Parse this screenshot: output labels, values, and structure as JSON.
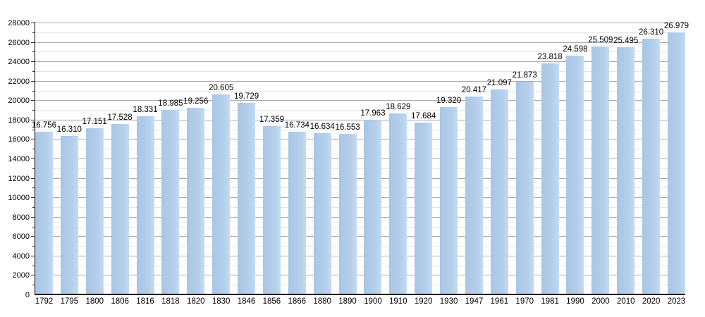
{
  "chart_data": {
    "type": "bar",
    "title": "",
    "xlabel": "",
    "ylabel": "",
    "categories": [
      "1792",
      "1795",
      "1800",
      "1806",
      "1816",
      "1818",
      "1820",
      "1830",
      "1846",
      "1856",
      "1866",
      "1880",
      "1890",
      "1900",
      "1910",
      "1920",
      "1930",
      "1947",
      "1961",
      "1970",
      "1981",
      "1990",
      "2000",
      "2010",
      "2020",
      "2023"
    ],
    "values": [
      16756,
      16310,
      17151,
      17528,
      18331,
      18985,
      19256,
      20605,
      19729,
      17359,
      16734,
      16634,
      16553,
      17963,
      18629,
      17684,
      19320,
      20417,
      21097,
      21873,
      23818,
      24598,
      25509,
      25495,
      26310,
      26979
    ],
    "bar_labels": [
      "16.756",
      "16.310",
      "17.151",
      "17.528",
      "18.331",
      "18.985",
      "19.256",
      "20.605",
      "19.729",
      "17.359",
      "16.734",
      "16.634",
      "16.553",
      "17.963",
      "18.629",
      "17.684",
      "19.320",
      "20.417",
      "21.097",
      "21.873",
      "23.818",
      "24.598",
      "25.509",
      "25.495",
      "26.310",
      "26.979"
    ],
    "ylim": [
      0,
      28000
    ],
    "y_major_step": 2000,
    "y_minor_step": 1000,
    "y_tick_labels": [
      "0",
      "2000",
      "4000",
      "6000",
      "8000",
      "10000",
      "12000",
      "14000",
      "16000",
      "18000",
      "20000",
      "22000",
      "24000",
      "26000",
      "28000"
    ],
    "grid": true,
    "legend": false
  },
  "colors": {
    "bar_fill": "#aecbe8",
    "bar_fill_light": "#c5daf1",
    "major_gridline": "#a9a9a9",
    "minor_gridline": "#e4e4e4",
    "axis": "#000000",
    "text": "#000000",
    "background": "#ffffff"
  }
}
